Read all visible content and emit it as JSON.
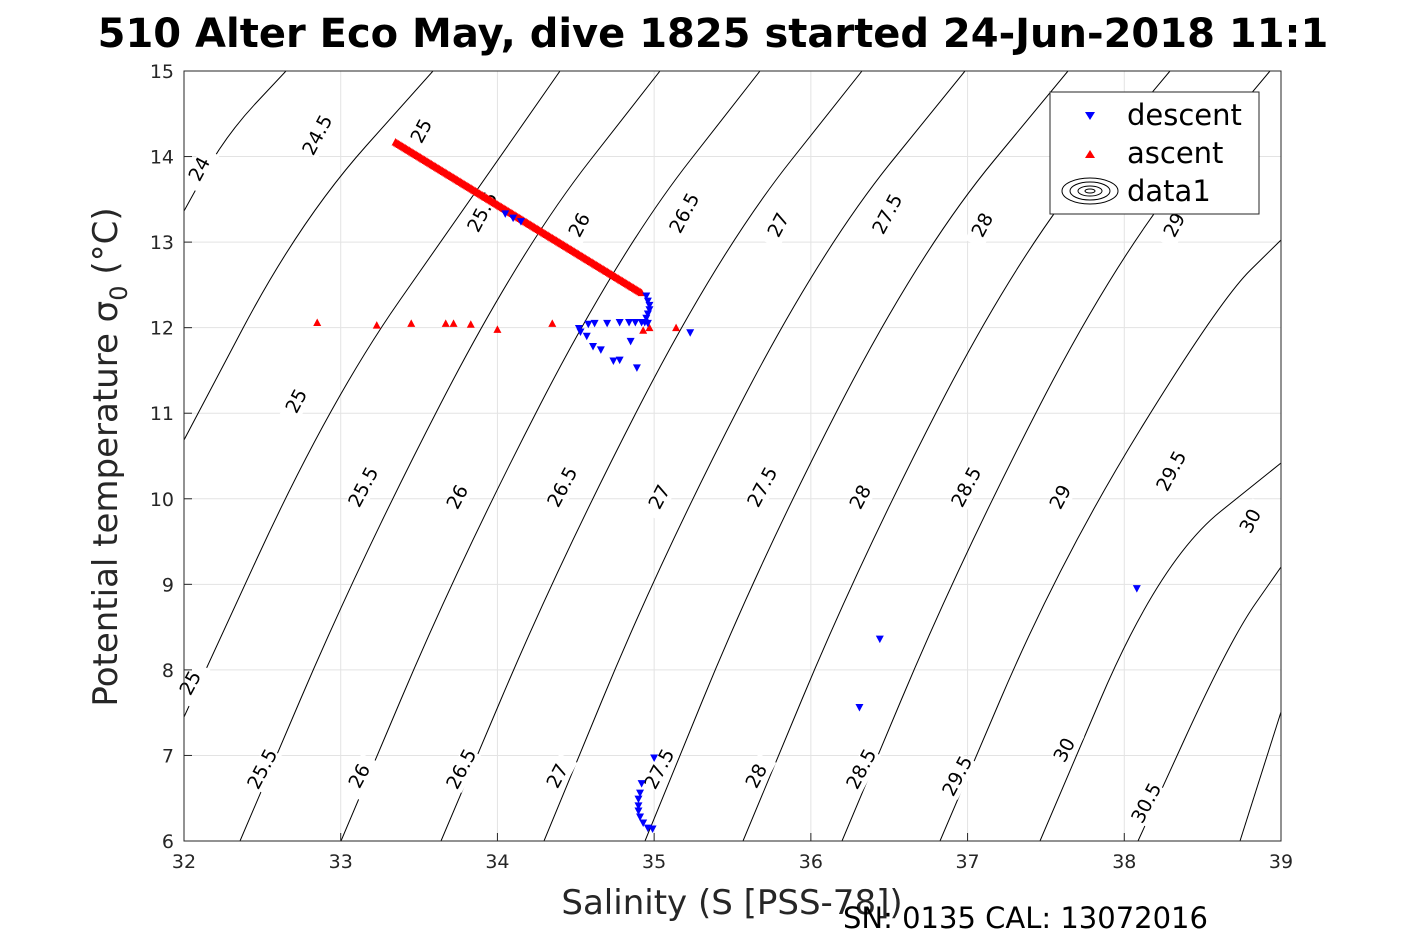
{
  "chart_data": {
    "type": "scatter",
    "title": "510 Alter Eco May, dive 1825 started 24-Jun-2018 11:1",
    "xlabel": "Salinity (S [PSS-78])",
    "ylabel": "Potential temperature σ",
    "ylabel_sub": "0",
    "ylabel_unit": " (°C)",
    "xlim": [
      32,
      39
    ],
    "ylim": [
      6,
      15
    ],
    "xticks": [
      32,
      33,
      34,
      35,
      36,
      37,
      38,
      39
    ],
    "yticks": [
      6,
      7,
      8,
      9,
      10,
      11,
      12,
      13,
      14,
      15
    ],
    "grid": true,
    "legend_position": "top-right",
    "legend": [
      {
        "label": "descent",
        "marker": "triangle-down",
        "color": "#0000ff"
      },
      {
        "label": "ascent",
        "marker": "triangle-up",
        "color": "#ff0000"
      },
      {
        "label": "data1",
        "marker": "contour",
        "color": "#000000"
      }
    ],
    "footnote": "SN: 0135  CAL: 13072016",
    "series": [
      {
        "name": "descent",
        "color": "#0000ff",
        "marker": "triangle-down",
        "points": [
          [
            34.05,
            13.33
          ],
          [
            34.1,
            13.28
          ],
          [
            34.15,
            13.24
          ],
          [
            34.95,
            12.37
          ],
          [
            34.96,
            12.31
          ],
          [
            34.97,
            12.26
          ],
          [
            34.97,
            12.21
          ],
          [
            34.96,
            12.16
          ],
          [
            34.95,
            12.11
          ],
          [
            34.94,
            12.06
          ],
          [
            34.52,
            11.99
          ],
          [
            34.53,
            11.95
          ],
          [
            34.57,
            11.9
          ],
          [
            34.61,
            11.78
          ],
          [
            34.66,
            11.74
          ],
          [
            34.74,
            11.61
          ],
          [
            34.78,
            11.62
          ],
          [
            34.89,
            11.53
          ],
          [
            34.85,
            11.84
          ],
          [
            34.58,
            12.04
          ],
          [
            34.62,
            12.05
          ],
          [
            34.7,
            12.05
          ],
          [
            34.78,
            12.06
          ],
          [
            34.84,
            12.06
          ],
          [
            34.88,
            12.06
          ],
          [
            34.92,
            12.06
          ],
          [
            34.96,
            12.05
          ],
          [
            35.23,
            11.94
          ],
          [
            38.08,
            8.95
          ],
          [
            36.44,
            8.36
          ],
          [
            36.31,
            7.56
          ],
          [
            35.0,
            6.97
          ],
          [
            34.92,
            6.67
          ],
          [
            34.91,
            6.56
          ],
          [
            34.9,
            6.49
          ],
          [
            34.9,
            6.41
          ],
          [
            34.9,
            6.35
          ],
          [
            34.91,
            6.28
          ],
          [
            34.93,
            6.21
          ],
          [
            34.96,
            6.15
          ],
          [
            34.99,
            6.14
          ]
        ]
      },
      {
        "name": "ascent",
        "color": "#ff0000",
        "marker": "triangle-up",
        "line_start": [
          33.35,
          14.17
        ],
        "line_end": [
          34.92,
          12.41
        ],
        "line_count": 180,
        "points": [
          [
            32.85,
            12.06
          ],
          [
            33.23,
            12.03
          ],
          [
            33.45,
            12.05
          ],
          [
            33.67,
            12.05
          ],
          [
            33.72,
            12.05
          ],
          [
            33.83,
            12.04
          ],
          [
            34.0,
            11.98
          ],
          [
            34.35,
            12.05
          ],
          [
            34.93,
            11.97
          ],
          [
            34.97,
            12.0
          ],
          [
            35.14,
            12.0
          ]
        ]
      }
    ],
    "contour_labels": [
      "24",
      "24.5",
      "25",
      "25",
      "25",
      "25.5",
      "25.5",
      "25.5",
      "26",
      "26",
      "26",
      "26.5",
      "26.5",
      "26.5",
      "27",
      "27",
      "27",
      "27.5",
      "27.5",
      "27.5",
      "28",
      "28",
      "28",
      "28.5",
      "28.5",
      "29",
      "29",
      "29.5",
      "29.5",
      "30",
      "30",
      "30.5"
    ]
  }
}
